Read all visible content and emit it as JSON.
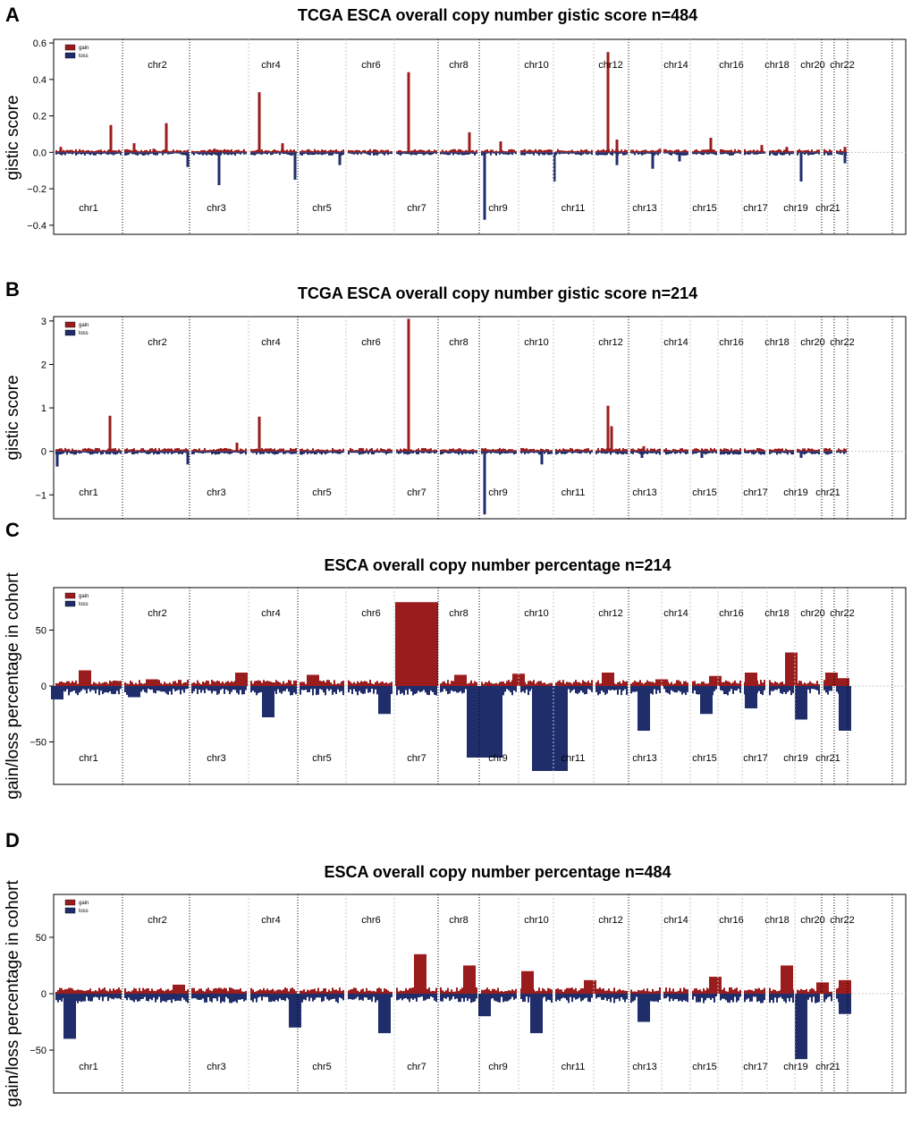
{
  "chart_data": [
    {
      "type": "bar",
      "panel_label": "A",
      "title": "TCGA ESCA overall copy number gistic score n=484",
      "ylabel": "gistic score",
      "xlabel": "",
      "ylim": [
        -0.45,
        0.62
      ],
      "yticks": [
        -0.4,
        -0.2,
        0.0,
        0.2,
        0.4,
        0.6
      ],
      "ytick_labels": [
        "−0.4",
        "−0.2",
        "0.0",
        "0.2",
        "0.4",
        "0.6"
      ],
      "legend": {
        "position": "top-left",
        "gain": "gain",
        "loss": "loss"
      },
      "colors": {
        "gain": "#9b1c1c",
        "loss": "#1f2d6b"
      },
      "chromosomes": {
        "top": [
          "chr2",
          "chr4",
          "chr6",
          "chr8",
          "chr10",
          "chr12",
          "chr14",
          "chr16",
          "chr18",
          "chr20",
          "chr22"
        ],
        "bottom": [
          "chr1",
          "chr3",
          "chr5",
          "chr7",
          "chr9",
          "chr11",
          "chr13",
          "chr15",
          "chr17",
          "chr19",
          "chr21"
        ]
      },
      "series": [
        {
          "name": "gain",
          "values": [
            0.03,
            0.15,
            0.05,
            0.02,
            0.16,
            0.02,
            0.33,
            0.05,
            0.44,
            0.11,
            0.06,
            0.55,
            0.07,
            0.02,
            0.08,
            0.04,
            0.03,
            0.03
          ]
        },
        {
          "name": "loss",
          "values": [
            -0.08,
            -0.18,
            -0.15,
            -0.07,
            -0.37,
            -0.16,
            -0.07,
            -0.09,
            -0.05,
            -0.16,
            -0.06
          ]
        }
      ]
    },
    {
      "type": "bar",
      "panel_label": "B",
      "title": "TCGA ESCA overall copy number gistic score n=214",
      "ylabel": "gistic score",
      "xlabel": "",
      "ylim": [
        -1.55,
        3.1
      ],
      "yticks": [
        -1,
        0,
        1,
        2,
        3
      ],
      "ytick_labels": [
        "−1",
        "0",
        "1",
        "2",
        "3"
      ],
      "legend": {
        "position": "top-left",
        "gain": "gain",
        "loss": "loss"
      },
      "colors": {
        "gain": "#9b1c1c",
        "loss": "#1f2d6b"
      },
      "chromosomes": {
        "top": [
          "chr2",
          "chr4",
          "chr6",
          "chr8",
          "chr10",
          "chr12",
          "chr14",
          "chr16",
          "chr18",
          "chr20",
          "chr22"
        ],
        "bottom": [
          "chr1",
          "chr3",
          "chr5",
          "chr7",
          "chr9",
          "chr11",
          "chr13",
          "chr15",
          "chr17",
          "chr19",
          "chr21"
        ]
      },
      "series": [
        {
          "name": "gain",
          "values": [
            0.82,
            0.2,
            0.8,
            3.05,
            1.05,
            0.58,
            0.12
          ]
        },
        {
          "name": "loss",
          "values": [
            -0.35,
            -0.3,
            -1.45,
            -0.3,
            -0.15,
            -0.15,
            -0.15
          ]
        }
      ]
    },
    {
      "type": "bar",
      "panel_label": "C",
      "title": "ESCA overall copy number percentage n=214",
      "ylabel": "gain/loss percentage in cohort",
      "xlabel": "",
      "ylim": [
        -88,
        88
      ],
      "yticks": [
        -50,
        0,
        50
      ],
      "ytick_labels": [
        "−50",
        "0",
        "50"
      ],
      "legend": {
        "position": "top-left",
        "gain": "gain",
        "loss": "loss"
      },
      "colors": {
        "gain": "#9b1c1c",
        "loss": "#1f2d6b"
      },
      "chromosomes": {
        "top": [
          "chr2",
          "chr4",
          "chr6",
          "chr8",
          "chr10",
          "chr12",
          "chr14",
          "chr16",
          "chr18",
          "chr20",
          "chr22"
        ],
        "bottom": [
          "chr1",
          "chr3",
          "chr5",
          "chr7",
          "chr9",
          "chr11",
          "chr13",
          "chr15",
          "chr17",
          "chr19",
          "chr21"
        ]
      },
      "series": [
        {
          "name": "gain",
          "values": [
            14,
            6,
            12,
            10,
            75,
            10,
            11,
            12,
            6,
            9,
            12,
            30,
            12,
            7
          ]
        },
        {
          "name": "loss",
          "values": [
            -12,
            -10,
            -28,
            -25,
            -64,
            -76,
            -40,
            -25,
            -20,
            -30,
            -40
          ]
        }
      ]
    },
    {
      "type": "bar",
      "panel_label": "D",
      "title": "ESCA overall copy number percentage n=484",
      "ylabel": "gain/loss percentage in cohort",
      "xlabel": "",
      "ylim": [
        -88,
        88
      ],
      "yticks": [
        -50,
        0,
        50
      ],
      "ytick_labels": [
        "−50",
        "0",
        "50"
      ],
      "legend": {
        "position": "top-left",
        "gain": "gain",
        "loss": "loss"
      },
      "colors": {
        "gain": "#9b1c1c",
        "loss": "#1f2d6b"
      },
      "chromosomes": {
        "top": [
          "chr2",
          "chr4",
          "chr6",
          "chr8",
          "chr10",
          "chr12",
          "chr14",
          "chr16",
          "chr18",
          "chr20",
          "chr22"
        ],
        "bottom": [
          "chr1",
          "chr3",
          "chr5",
          "chr7",
          "chr9",
          "chr11",
          "chr13",
          "chr15",
          "chr17",
          "chr19",
          "chr21"
        ]
      },
      "series": [
        {
          "name": "gain",
          "values": [
            3,
            8,
            3,
            35,
            25,
            20,
            12,
            15,
            25,
            10,
            12
          ]
        },
        {
          "name": "loss",
          "values": [
            -40,
            -30,
            -35,
            -20,
            -35,
            -25,
            -58,
            -18
          ]
        }
      ]
    }
  ]
}
